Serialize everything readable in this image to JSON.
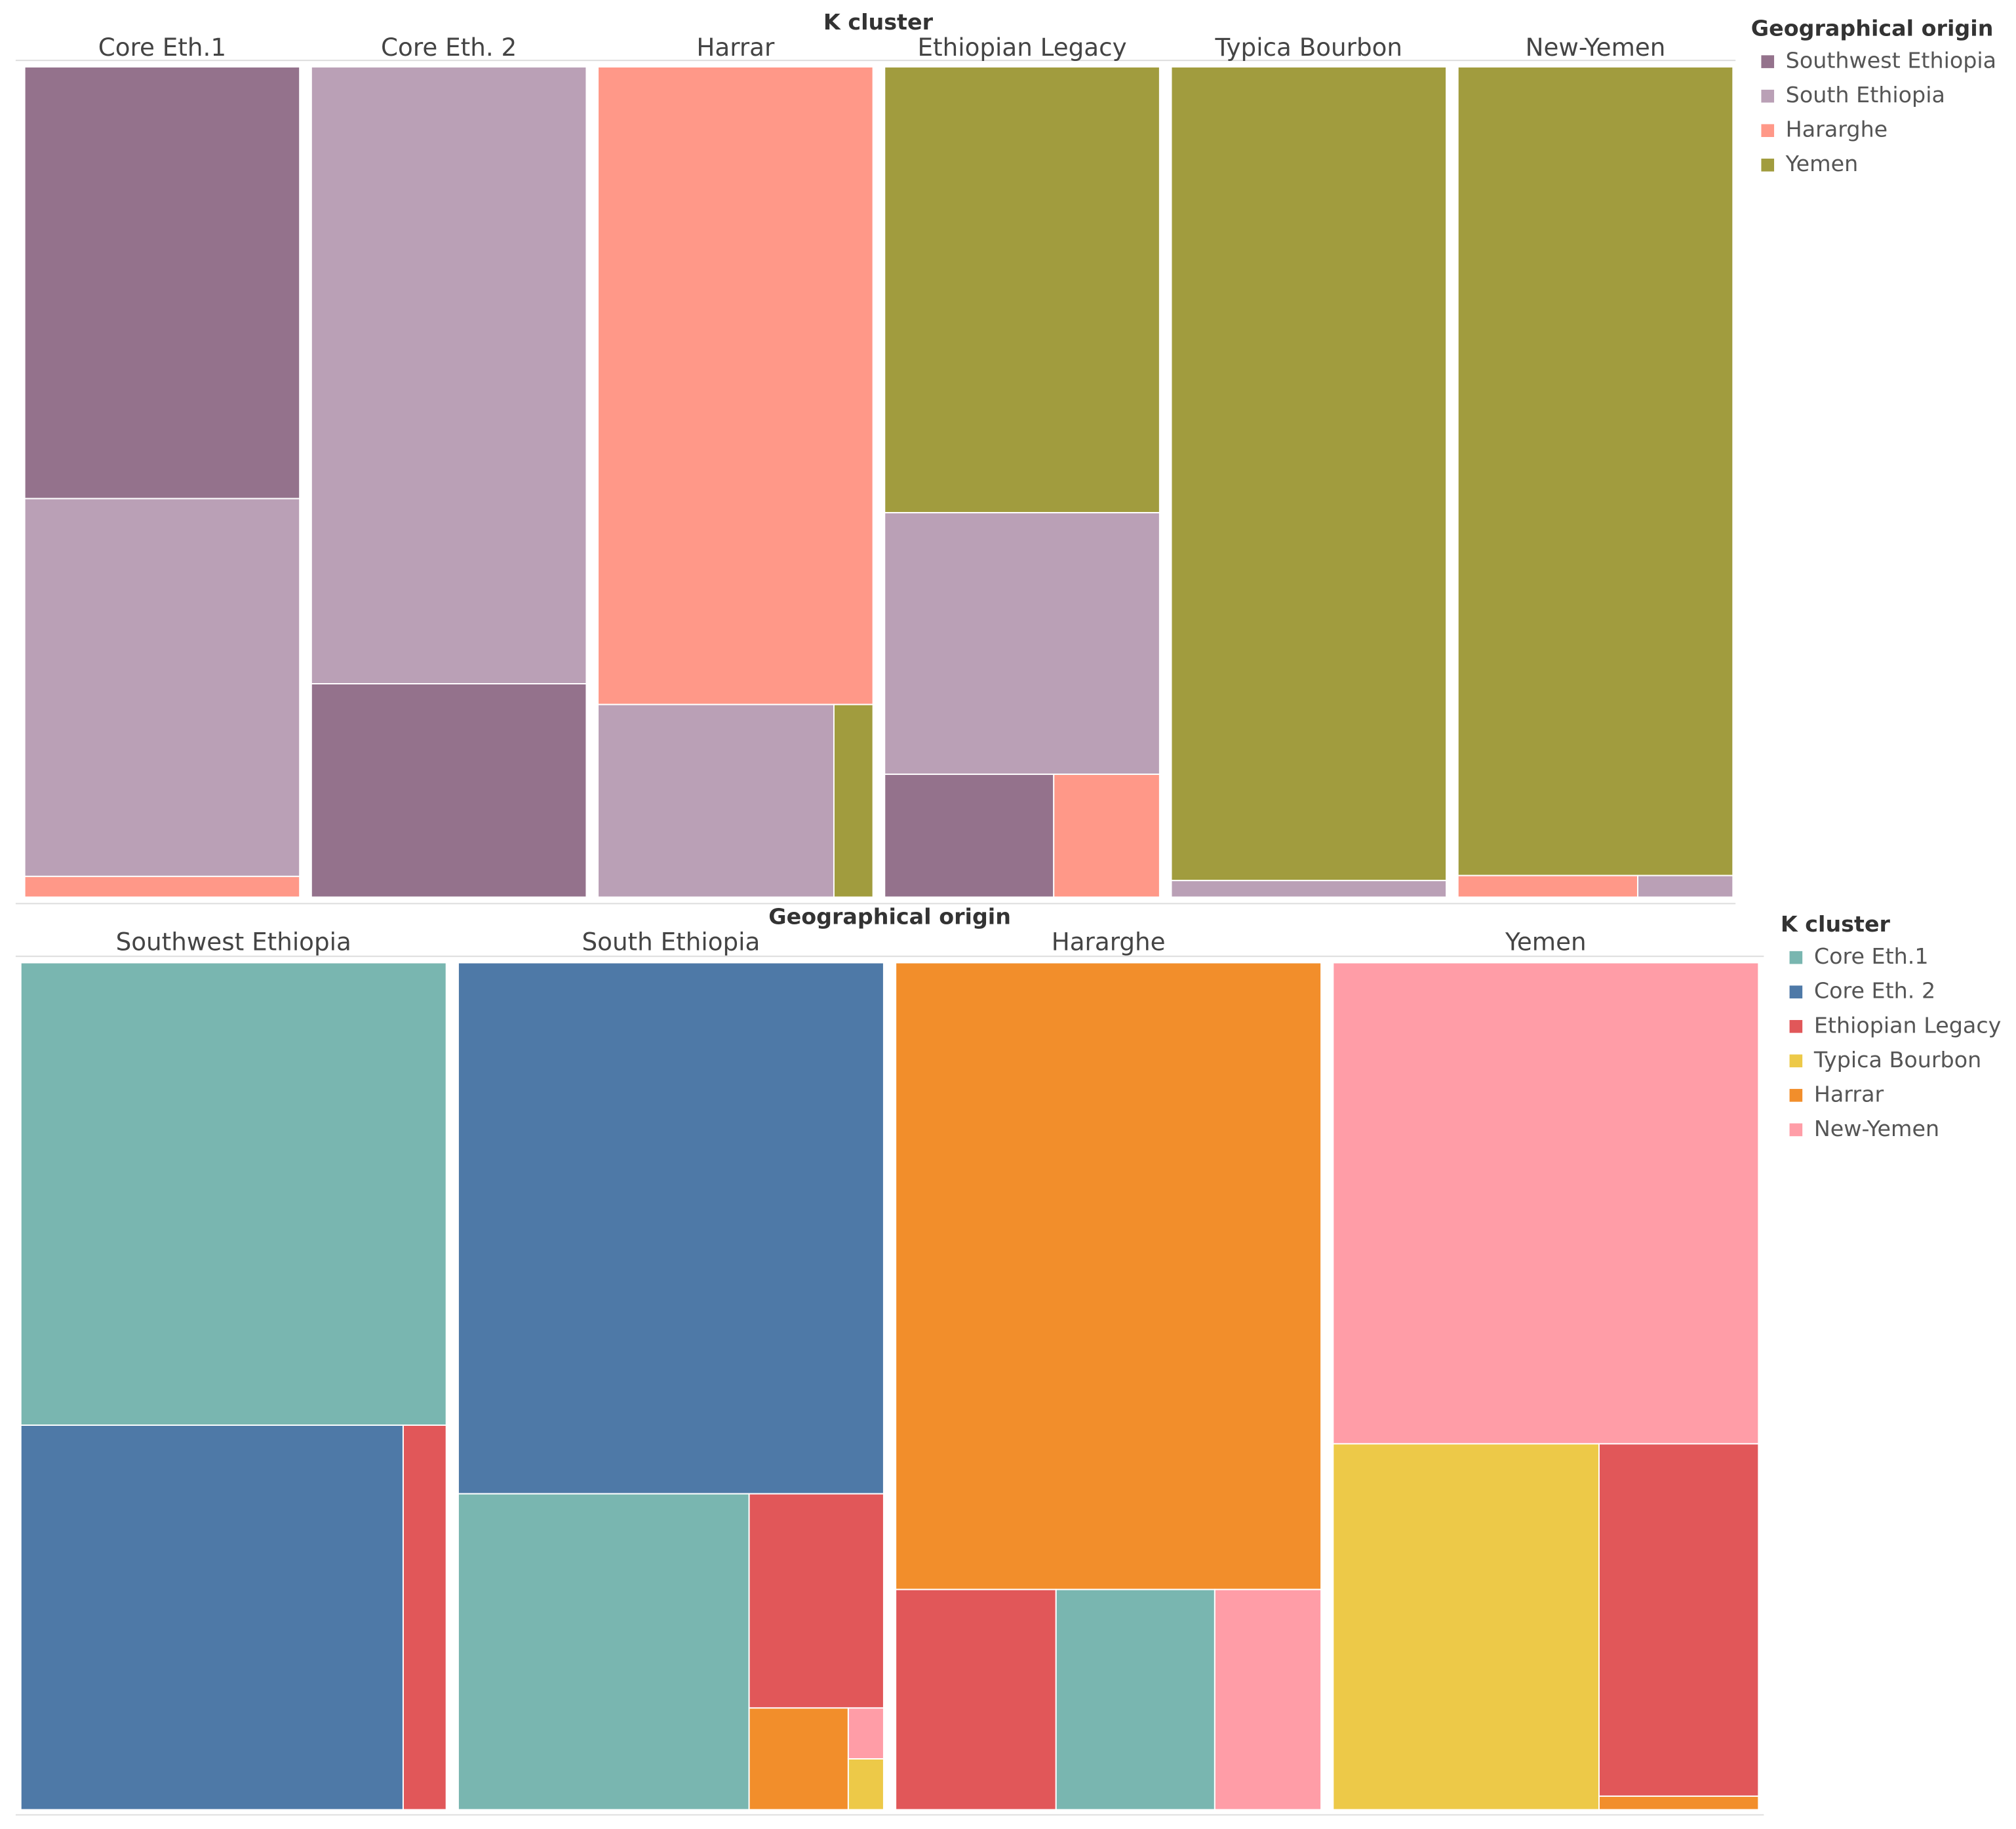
{
  "chart_data": [
    {
      "type": "treemap",
      "title": "K cluster",
      "legend": {
        "title": "Geographical origin",
        "items": [
          {
            "name": "Southwest Ethiopia",
            "color": "#94728c"
          },
          {
            "name": "South Ethiopia",
            "color": "#baa0b6"
          },
          {
            "name": "Hararghe",
            "color": "#ff9888"
          },
          {
            "name": "Yemen",
            "color": "#a19c3e"
          }
        ]
      },
      "panels": [
        {
          "name": "Core Eth.1",
          "items": [
            {
              "name": "Southwest Ethiopia",
              "value": 52
            },
            {
              "name": "South Ethiopia",
              "value": 45.5
            },
            {
              "name": "Hararghe",
              "value": 2.5
            }
          ]
        },
        {
          "name": "Core Eth. 2",
          "items": [
            {
              "name": "South Ethiopia",
              "value": 74.3
            },
            {
              "name": "Southwest Ethiopia",
              "value": 25.7
            }
          ]
        },
        {
          "name": "Harrar",
          "items": [
            {
              "name": "Hararghe",
              "value": 76.8
            },
            {
              "name": "South Ethiopia",
              "value": 19.9
            },
            {
              "name": "Yemen",
              "value": 3.3
            }
          ]
        },
        {
          "name": "Ethiopian Legacy",
          "items": [
            {
              "name": "Yemen",
              "value": 53.7
            },
            {
              "name": "South Ethiopia",
              "value": 31.5
            },
            {
              "name": "Southwest Ethiopia",
              "value": 9.1
            },
            {
              "name": "Hararghe",
              "value": 5.7
            }
          ]
        },
        {
          "name": "Typica Bourbon",
          "items": [
            {
              "name": "Yemen",
              "value": 98
            },
            {
              "name": "South Ethiopia",
              "value": 2
            }
          ]
        },
        {
          "name": "New-Yemen",
          "items": [
            {
              "name": "Yemen",
              "value": 97.4
            },
            {
              "name": "Hararghe",
              "value": 1.7
            },
            {
              "name": "South Ethiopia",
              "value": 0.9
            }
          ]
        }
      ]
    },
    {
      "type": "treemap",
      "title": "Geographical origin",
      "legend": {
        "title": "K cluster",
        "items": [
          {
            "name": "Core Eth.1",
            "color": "#79b6b0"
          },
          {
            "name": "Core Eth. 2",
            "color": "#4e79a7"
          },
          {
            "name": "Ethiopian Legacy",
            "color": "#e15759"
          },
          {
            "name": "Typica Bourbon",
            "color": "#edc948"
          },
          {
            "name": "Harrar",
            "color": "#f28e2b"
          },
          {
            "name": "New-Yemen",
            "color": "#ff9da7"
          }
        ]
      },
      "panels": [
        {
          "name": "Southwest Ethiopia",
          "items": [
            {
              "name": "Core Eth.1",
              "value": 54.6
            },
            {
              "name": "Core Eth. 2",
              "value": 40.8
            },
            {
              "name": "Ethiopian Legacy",
              "value": 4.6
            }
          ]
        },
        {
          "name": "South Ethiopia",
          "items": [
            {
              "name": "Core Eth. 2",
              "value": 62.7
            },
            {
              "name": "Core Eth.1",
              "value": 25.5
            },
            {
              "name": "Ethiopian Legacy",
              "value": 8
            },
            {
              "name": "Harrar",
              "value": 2.8
            },
            {
              "name": "New-Yemen",
              "value": 0.5
            },
            {
              "name": "Typica Bourbon",
              "value": 0.5
            }
          ]
        },
        {
          "name": "Hararghe",
          "items": [
            {
              "name": "Harrar",
              "value": 74
            },
            {
              "name": "Ethiopian Legacy",
              "value": 9.8
            },
            {
              "name": "Core Eth.1",
              "value": 9.7
            },
            {
              "name": "New-Yemen",
              "value": 6.5
            }
          ]
        },
        {
          "name": "Yemen",
          "items": [
            {
              "name": "New-Yemen",
              "value": 56.8
            },
            {
              "name": "Typica Bourbon",
              "value": 27
            },
            {
              "name": "Ethiopian Legacy",
              "value": 15.6
            },
            {
              "name": "Harrar",
              "value": 0.6
            }
          ]
        }
      ]
    }
  ]
}
